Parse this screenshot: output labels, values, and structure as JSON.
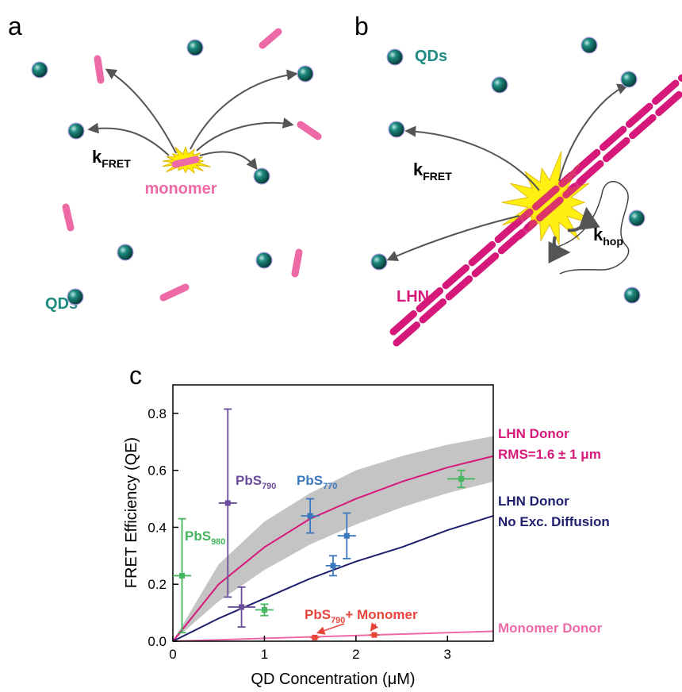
{
  "panels": {
    "a": {
      "letter": "a",
      "qd_label": "QDs",
      "monomer_label": "monomer",
      "rate": {
        "text": "k",
        "sub": "FRET"
      }
    },
    "b": {
      "letter": "b",
      "qd_label": "QDs",
      "lhn_label": "LHN",
      "rate": {
        "text": "k",
        "sub": "FRET"
      },
      "hop": {
        "text": "k",
        "sub": "hop"
      }
    }
  },
  "chart_data": {
    "type": "scatter",
    "panel_label": "c",
    "xlabel": "QD Concentration (μM)",
    "ylabel": "FRET Efficiency (QE)",
    "xlim": [
      0,
      3.5
    ],
    "ylim": [
      0,
      0.9
    ],
    "xticks": [
      0,
      1,
      2,
      3
    ],
    "yticks": [
      {
        "value": 0,
        "label": "0.0"
      },
      0.2,
      0.4,
      0.6,
      0.8
    ],
    "band": {
      "color": "#c4c4c4",
      "x": [
        0,
        0.5,
        1,
        1.5,
        2,
        2.5,
        3,
        3.5
      ],
      "lower": [
        0,
        0.14,
        0.25,
        0.34,
        0.41,
        0.47,
        0.52,
        0.56
      ],
      "upper": [
        0,
        0.27,
        0.42,
        0.52,
        0.6,
        0.65,
        0.69,
        0.72
      ]
    },
    "curves": [
      {
        "label": [
          "LHN Donor",
          "RMS=1.6 ± 1 μm"
        ],
        "color": "#d6187a",
        "x": [
          0,
          0.5,
          1,
          1.5,
          2,
          2.5,
          3,
          3.5
        ],
        "values": [
          0,
          0.2,
          0.33,
          0.43,
          0.5,
          0.56,
          0.61,
          0.65
        ]
      },
      {
        "label": [
          "LHN Donor",
          "No Exc. Diffusion"
        ],
        "color": "#1f1f6e",
        "x": [
          0,
          0.5,
          1,
          1.5,
          2,
          2.5,
          3,
          3.5
        ],
        "values": [
          0,
          0.08,
          0.15,
          0.22,
          0.28,
          0.33,
          0.39,
          0.44
        ]
      },
      {
        "label": [
          "Monomer Donor"
        ],
        "color": "#ee6aa7",
        "x": [
          0,
          0.5,
          1,
          1.5,
          2,
          2.5,
          3,
          3.5
        ],
        "values": [
          0,
          0.005,
          0.01,
          0.015,
          0.02,
          0.025,
          0.03,
          0.035
        ]
      }
    ],
    "points": [
      {
        "label": {
          "text": "PbS",
          "sub": "980"
        },
        "color": "#45b560",
        "x": [
          0.1,
          1.0,
          3.15
        ],
        "values": [
          0.23,
          0.11,
          0.57
        ],
        "xerr": [
          0.1,
          0.1,
          0.15
        ],
        "yerr": [
          0.2,
          0.02,
          0.03
        ]
      },
      {
        "label": {
          "text": "PbS",
          "sub": "790"
        },
        "color": "#6a4c9c",
        "x": [
          0.6,
          0.75
        ],
        "values": [
          0.485,
          0.12
        ],
        "xerr": [
          0.1,
          0.15
        ],
        "yerr": [
          0.33,
          0.07
        ]
      },
      {
        "label": {
          "text": "PbS",
          "sub": "770"
        },
        "color": "#3a78c0",
        "x": [
          1.5,
          1.75,
          1.9
        ],
        "values": [
          0.44,
          0.265,
          0.37
        ],
        "xerr": [
          0.1,
          0.08,
          0.1
        ],
        "yerr": [
          0.06,
          0.035,
          0.08
        ]
      },
      {
        "label": {
          "text": "PbS",
          "sub": "790",
          "suffix": "+ Monomer"
        },
        "color": "#e8453c",
        "x": [
          1.55,
          2.2
        ],
        "values": [
          0.013,
          0.022
        ],
        "xerr": [
          0.05,
          0.05
        ]
      }
    ]
  }
}
